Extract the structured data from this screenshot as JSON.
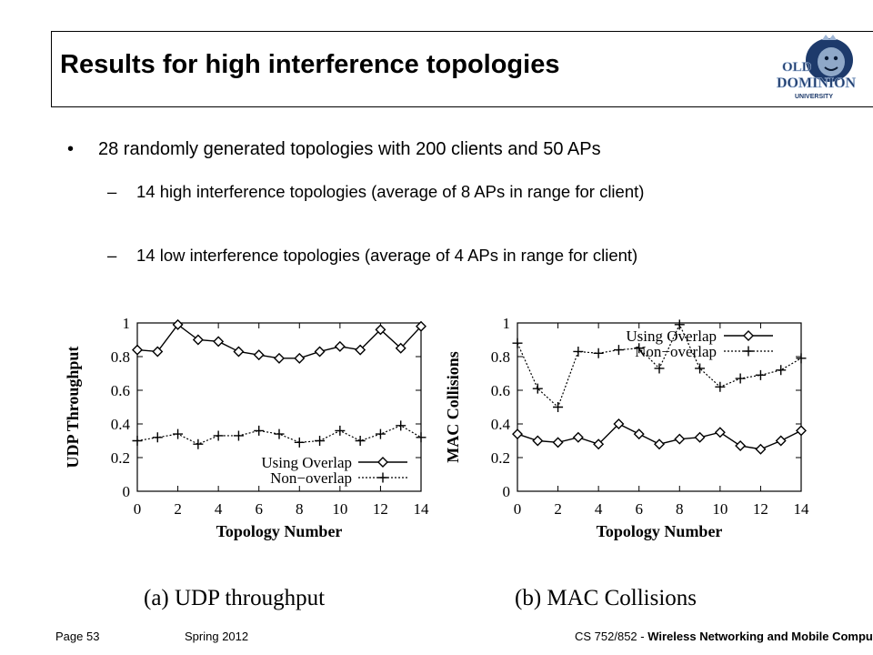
{
  "slide": {
    "title": "Results for high interference topologies",
    "bullet": "28 randomly generated topologies with 200 clients and 50 APs",
    "sub_bullets": [
      "14 high interference topologies (average of 8 APs in range for client)",
      "14 low interference topologies (average of 4 APs in range for client)"
    ],
    "bullet_glyph": "•",
    "dash_glyph": "–"
  },
  "logo": {
    "line1": "OLD",
    "line2": "DOMINION",
    "line3": "UNIVERSITY"
  },
  "footer": {
    "page": "Page 53",
    "term": "Spring 2012",
    "course_prefix": "CS 752/852 - ",
    "course_name": "Wireless Networking and Mobile Computing"
  },
  "chart_data": [
    {
      "type": "line",
      "caption": "(a) UDP throughput",
      "xlabel": "Topology Number",
      "ylabel": "UDP Throughput",
      "xlim": [
        0,
        14
      ],
      "ylim": [
        0,
        1
      ],
      "xticks": [
        0,
        2,
        4,
        6,
        8,
        10,
        12,
        14
      ],
      "yticks": [
        0,
        0.2,
        0.4,
        0.6,
        0.8,
        1
      ],
      "legend_position": "bottom-right",
      "x": [
        0,
        1,
        2,
        3,
        4,
        5,
        6,
        7,
        8,
        9,
        10,
        11,
        12,
        13,
        14
      ],
      "series": [
        {
          "name": "Using Overlap",
          "marker": "diamond",
          "line": "solid",
          "values": [
            0.84,
            0.83,
            0.99,
            0.9,
            0.89,
            0.83,
            0.81,
            0.79,
            0.79,
            0.83,
            0.86,
            0.84,
            0.96,
            0.85,
            0.98
          ]
        },
        {
          "name": "Non−overlap",
          "marker": "plus",
          "line": "dotted",
          "values": [
            0.3,
            0.32,
            0.34,
            0.28,
            0.33,
            0.33,
            0.36,
            0.34,
            0.29,
            0.3,
            0.36,
            0.3,
            0.34,
            0.39,
            0.32
          ]
        }
      ]
    },
    {
      "type": "line",
      "caption": "(b) MAC Collisions",
      "xlabel": "Topology Number",
      "ylabel": "MAC Collisions",
      "xlim": [
        0,
        14
      ],
      "ylim": [
        0,
        1
      ],
      "xticks": [
        0,
        2,
        4,
        6,
        8,
        10,
        12,
        14
      ],
      "yticks": [
        0,
        0.2,
        0.4,
        0.6,
        0.8,
        1
      ],
      "legend_position": "top-right",
      "x": [
        0,
        1,
        2,
        3,
        4,
        5,
        6,
        7,
        8,
        9,
        10,
        11,
        12,
        13,
        14
      ],
      "series": [
        {
          "name": "Using Overlap",
          "marker": "diamond",
          "line": "solid",
          "values": [
            0.34,
            0.3,
            0.29,
            0.32,
            0.28,
            0.4,
            0.34,
            0.28,
            0.31,
            0.32,
            0.35,
            0.27,
            0.25,
            0.3,
            0.36
          ]
        },
        {
          "name": "Non−overlap",
          "marker": "plus",
          "line": "dotted",
          "values": [
            0.88,
            0.61,
            0.5,
            0.83,
            0.82,
            0.84,
            0.85,
            0.73,
            0.99,
            0.73,
            0.62,
            0.67,
            0.69,
            0.72,
            0.79
          ]
        }
      ]
    }
  ]
}
